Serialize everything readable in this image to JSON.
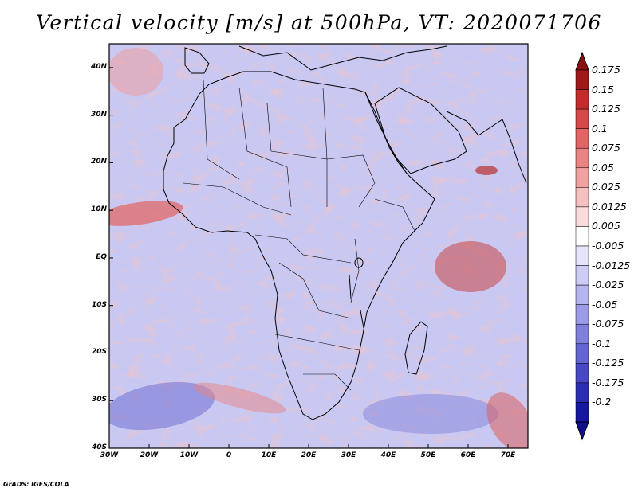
{
  "title": "Vertical velocity [m/s] at 500hPa, VT: 2020071706",
  "map": {
    "lon_range": [
      -30,
      75
    ],
    "lat_range": [
      -40,
      45
    ],
    "lat_labels": [
      "40N",
      "30N",
      "20N",
      "10N",
      "EQ",
      "10S",
      "20S",
      "30S",
      "40S"
    ],
    "lat_values": [
      40,
      30,
      20,
      10,
      0,
      -10,
      -20,
      -30,
      -40
    ],
    "lon_labels": [
      "30W",
      "20W",
      "10W",
      "0",
      "10E",
      "20E",
      "30E",
      "40E",
      "50E",
      "60E",
      "70E"
    ],
    "lon_values": [
      -30,
      -20,
      -10,
      0,
      10,
      20,
      30,
      40,
      50,
      60,
      70
    ]
  },
  "colorbar": {
    "labels": [
      "0.175",
      "0.15",
      "0.125",
      "0.1",
      "0.075",
      "0.05",
      "0.025",
      "0.0125",
      "0.005",
      "-0.005",
      "-0.0125",
      "-0.025",
      "-0.05",
      "-0.075",
      "-0.1",
      "-0.125",
      "-0.175",
      "-0.2"
    ],
    "colors": [
      "#a01818",
      "#c42c2c",
      "#d84848",
      "#e26464",
      "#ea8484",
      "#f0a2a2",
      "#f6c0c0",
      "#fadcdc",
      "#ffffff",
      "#e4e4fa",
      "#ccccf4",
      "#b4b4ee",
      "#9c9ce6",
      "#8080dc",
      "#6464d2",
      "#4848c6",
      "#2c2cb4",
      "#1616a0"
    ],
    "top_arrow_color": "#8a1010",
    "bottom_arrow_color": "#10108a"
  },
  "credit": "GrADS: IGES/COLA"
}
